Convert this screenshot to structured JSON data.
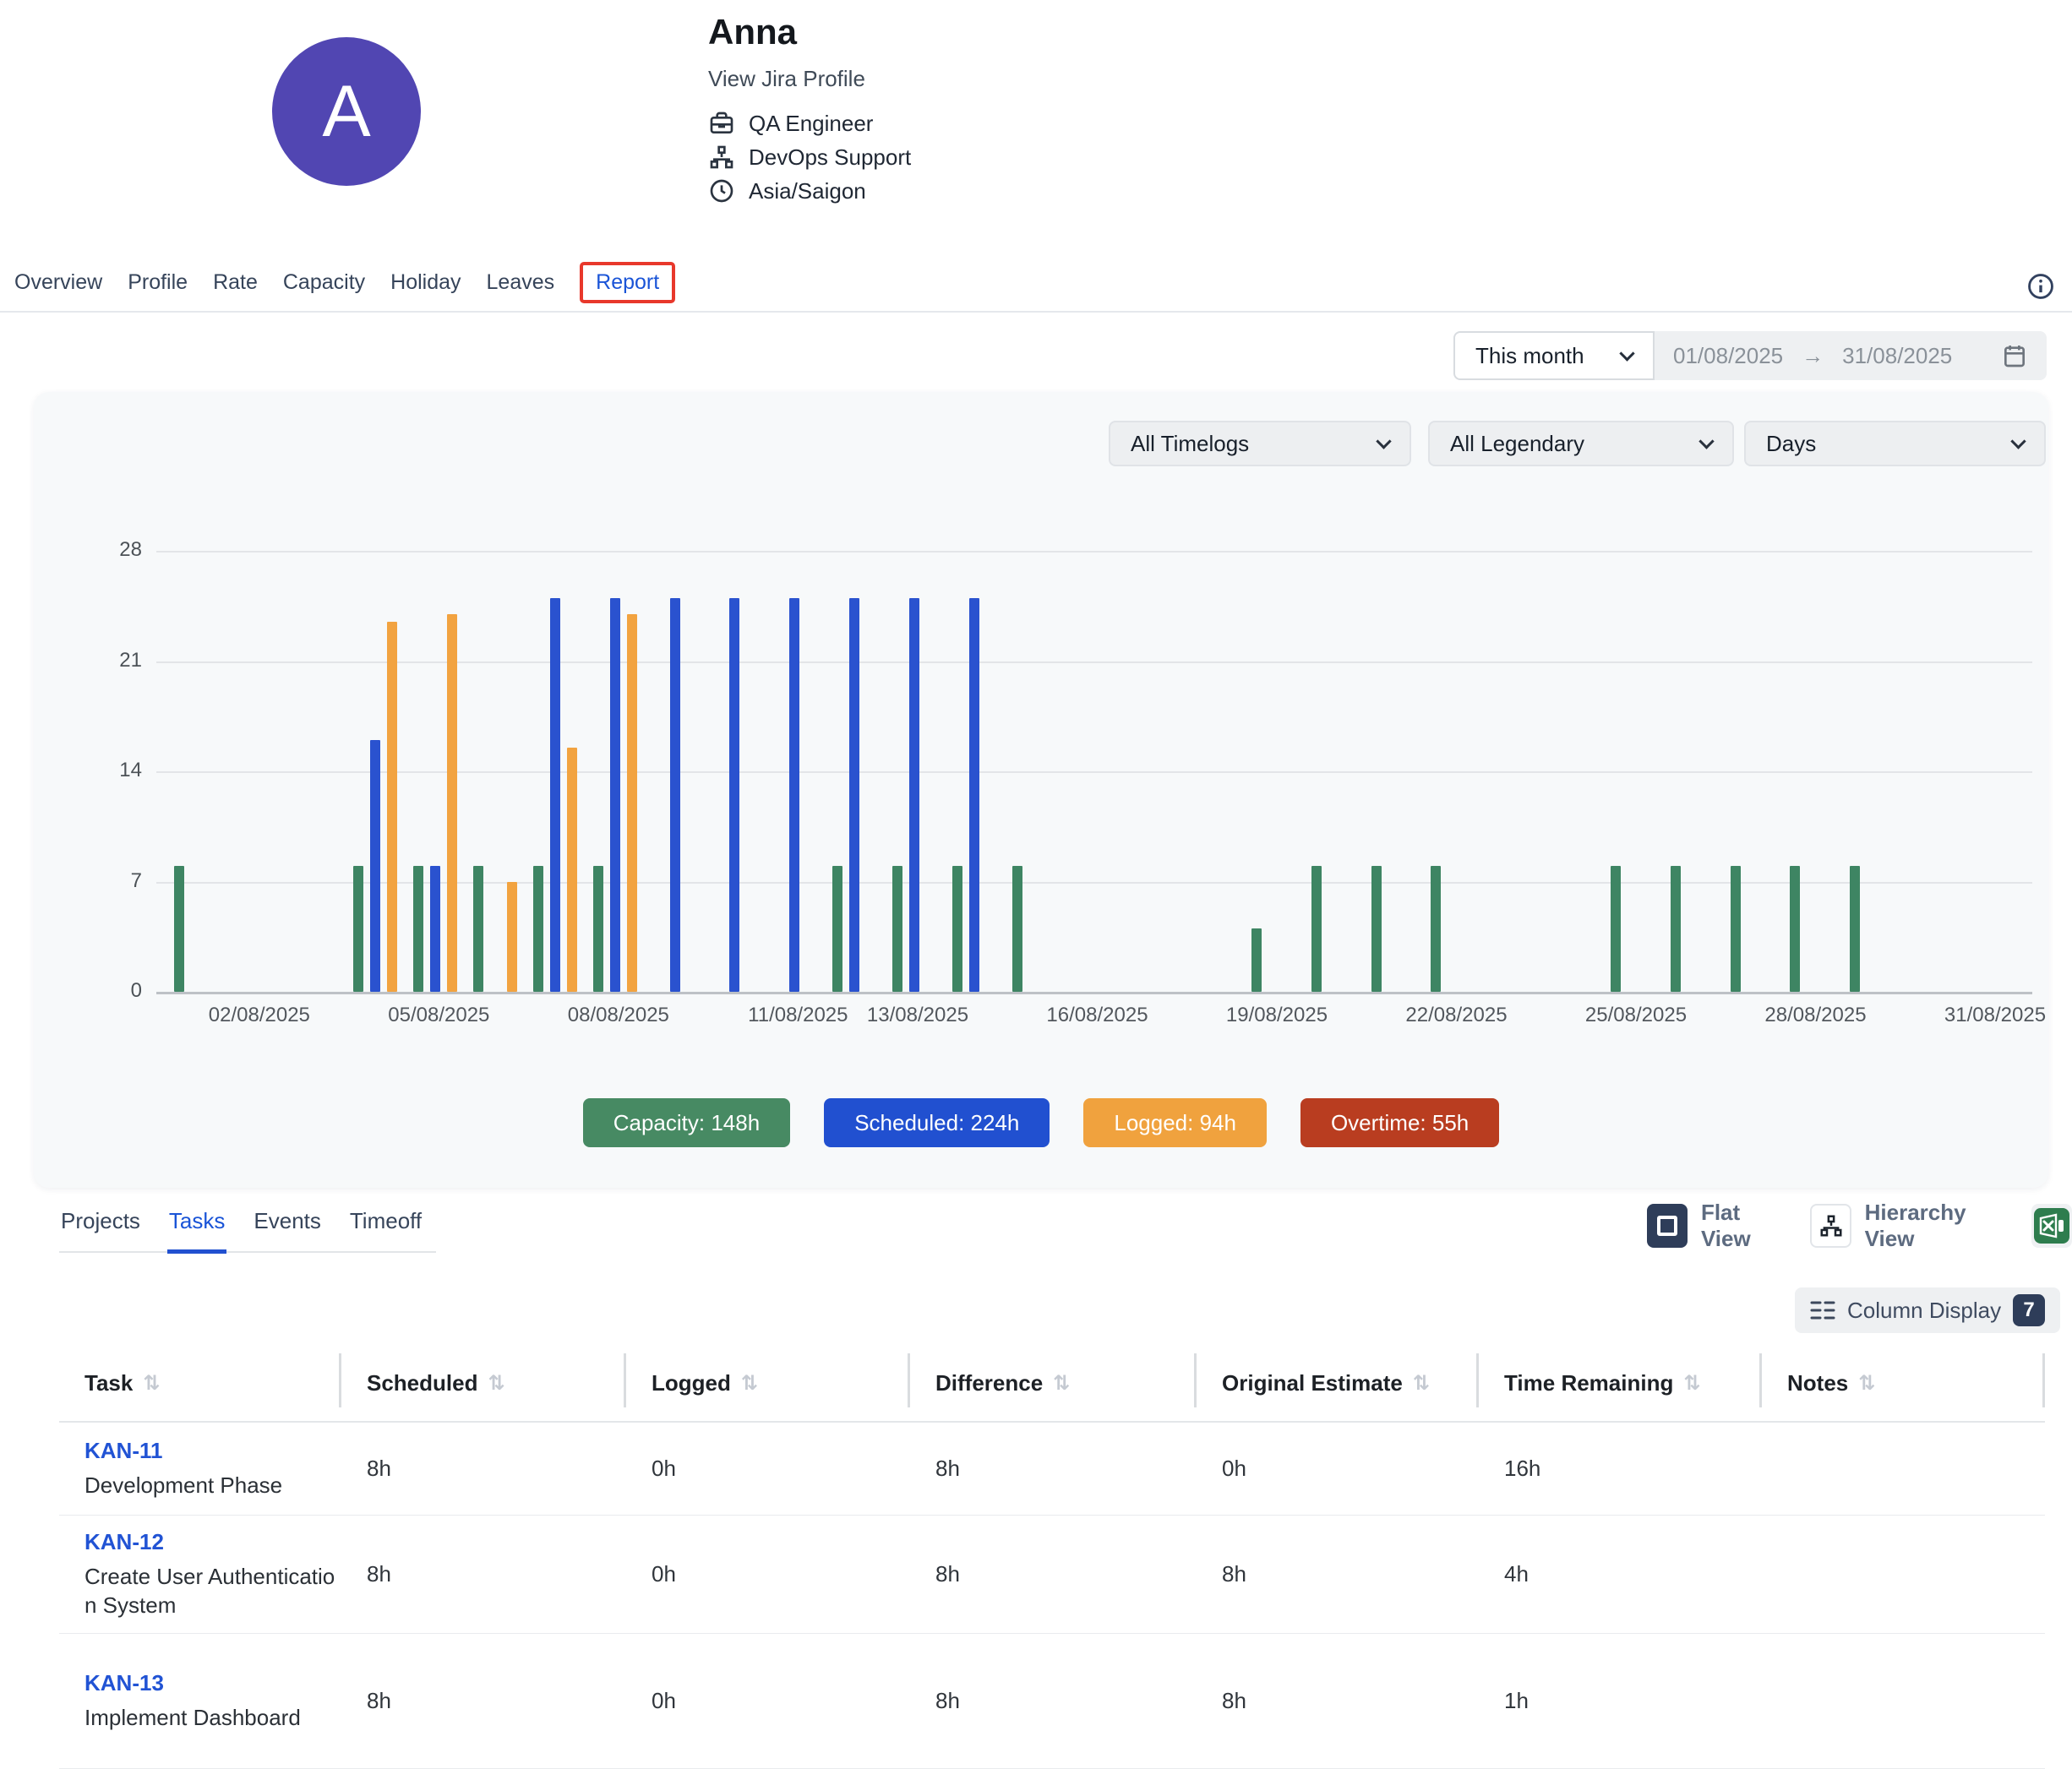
{
  "profile": {
    "avatar_letter": "A",
    "name": "Anna",
    "jira_link": "View Jira Profile",
    "role": "QA Engineer",
    "team": "DevOps Support",
    "timezone": "Asia/Saigon"
  },
  "nav": {
    "items": [
      "Overview",
      "Profile",
      "Rate",
      "Capacity",
      "Holiday",
      "Leaves",
      "Report"
    ],
    "active": "Report",
    "highlight_color": "#e8382b"
  },
  "period": {
    "preset": "This month",
    "start_date": "01/08/2025",
    "arrow": "→",
    "end_date": "31/08/2025"
  },
  "filters": {
    "timelogs": "All Timelogs",
    "legendary": "All Legendary",
    "granularity": "Days"
  },
  "chart_data": {
    "type": "bar",
    "title": "",
    "xlabel": "",
    "ylabel": "",
    "ylim": [
      0,
      28
    ],
    "yticks": [
      0,
      7,
      14,
      21,
      28
    ],
    "grid": true,
    "x_tick_days": [
      2,
      5,
      8,
      11,
      13,
      16,
      19,
      22,
      25,
      28,
      31
    ],
    "x_tick_labels": [
      "02/08/2025",
      "05/08/2025",
      "08/08/2025",
      "11/08/2025",
      "13/08/2025",
      "16/08/2025",
      "19/08/2025",
      "22/08/2025",
      "25/08/2025",
      "28/08/2025",
      "31/08/2025"
    ],
    "series_colors": {
      "capacity": "#3e8563",
      "scheduled": "#2a52cf",
      "logged": "#f2a340",
      "overtime": "#bb3c20"
    },
    "days": [
      {
        "day": 1,
        "capacity": 8
      },
      {
        "day": 4,
        "capacity": 8,
        "scheduled": 16,
        "logged": 23.5
      },
      {
        "day": 5,
        "capacity": 8,
        "scheduled": 8,
        "logged": 24
      },
      {
        "day": 6,
        "capacity": 8,
        "logged": 7
      },
      {
        "day": 7,
        "capacity": 8,
        "scheduled": 25,
        "logged": 15.5
      },
      {
        "day": 8,
        "capacity": 8,
        "scheduled": 25,
        "logged": 24
      },
      {
        "day": 9,
        "scheduled": 25
      },
      {
        "day": 10,
        "scheduled": 25
      },
      {
        "day": 11,
        "scheduled": 25
      },
      {
        "day": 12,
        "capacity": 8,
        "scheduled": 25
      },
      {
        "day": 13,
        "capacity": 8,
        "scheduled": 25
      },
      {
        "day": 14,
        "capacity": 8,
        "scheduled": 25
      },
      {
        "day": 15,
        "capacity": 8
      },
      {
        "day": 19,
        "capacity": 4
      },
      {
        "day": 20,
        "capacity": 8
      },
      {
        "day": 21,
        "capacity": 8
      },
      {
        "day": 22,
        "capacity": 8
      },
      {
        "day": 25,
        "capacity": 8
      },
      {
        "day": 26,
        "capacity": 8
      },
      {
        "day": 27,
        "capacity": 8
      },
      {
        "day": 28,
        "capacity": 8
      },
      {
        "day": 29,
        "capacity": 8
      }
    ],
    "legend_position": "bottom",
    "totals": {
      "capacity": "148h",
      "scheduled": "224h",
      "logged": "94h",
      "overtime": "55h"
    }
  },
  "legend": [
    {
      "name": "capacity",
      "label": "Capacity: 148h",
      "color": "#478a63"
    },
    {
      "name": "scheduled",
      "label": "Scheduled: 224h",
      "color": "#2150d0"
    },
    {
      "name": "logged",
      "label": "Logged: 94h",
      "color": "#f0a23e"
    },
    {
      "name": "overtime",
      "label": "Overtime: 55h",
      "color": "#b93d20"
    }
  ],
  "tabs": {
    "items": [
      "Projects",
      "Tasks",
      "Events",
      "Timeoff"
    ],
    "active": "Tasks"
  },
  "view_controls": {
    "flat_label": "Flat View",
    "hierarchy_label": "Hierarchy View"
  },
  "column_display": {
    "label": "Column Display",
    "count": "7"
  },
  "table": {
    "columns": [
      "Task",
      "Scheduled",
      "Logged",
      "Difference",
      "Original Estimate",
      "Time Remaining",
      "Notes"
    ],
    "rows": [
      {
        "key": "KAN-11",
        "title": "Development Phase",
        "scheduled": "8h",
        "logged": "0h",
        "difference": "8h",
        "original_estimate": "0h",
        "time_remaining": "16h",
        "notes": ""
      },
      {
        "key": "KAN-12",
        "title": "Create User Authentication System",
        "scheduled": "8h",
        "logged": "0h",
        "difference": "8h",
        "original_estimate": "8h",
        "time_remaining": "4h",
        "notes": ""
      },
      {
        "key": "KAN-13",
        "title": "Implement Dashboard",
        "scheduled": "8h",
        "logged": "0h",
        "difference": "8h",
        "original_estimate": "8h",
        "time_remaining": "1h",
        "notes": ""
      }
    ]
  }
}
